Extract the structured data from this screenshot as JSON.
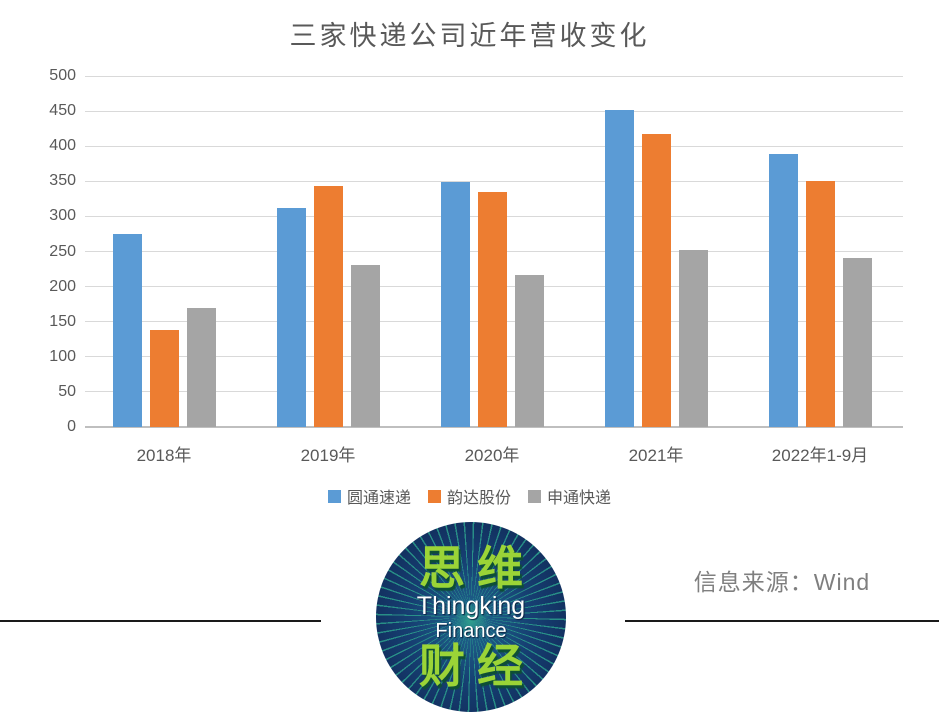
{
  "chart_data": {
    "type": "bar",
    "title": "三家快递公司近年营收变化",
    "categories": [
      "2018年",
      "2019年",
      "2020年",
      "2021年",
      "2022年1-9月"
    ],
    "series": [
      {
        "name": "圆通速递",
        "color": "#5B9BD5",
        "values": [
          275,
          312,
          349,
          451,
          389
        ]
      },
      {
        "name": "韵达股份",
        "color": "#ED7D31",
        "values": [
          138,
          344,
          335,
          417,
          351
        ]
      },
      {
        "name": "申通快递",
        "color": "#A5A5A5",
        "values": [
          170,
          231,
          216,
          252,
          241
        ]
      }
    ],
    "xlabel": "",
    "ylabel": "",
    "ylim": [
      0,
      500
    ],
    "ytick_step": 50,
    "grid": true,
    "legend_position": "bottom"
  },
  "colors": {
    "grid": "#D9D9D9",
    "axis": "#BFBFBF",
    "tick_label": "#595959",
    "title": "#595959",
    "source_text": "#7F7F7F",
    "rule_line": "#1A1A1A",
    "logo_navy": "#122F5E",
    "logo_ray_teal": "#2C9E8C",
    "logo_green": "#9BD437"
  },
  "logo": {
    "top_text": "思维",
    "middle_line1": "Thingking",
    "middle_line2": "Finance",
    "bottom_text": "财经"
  },
  "footer": {
    "source_label": "信息来源：Wind"
  }
}
